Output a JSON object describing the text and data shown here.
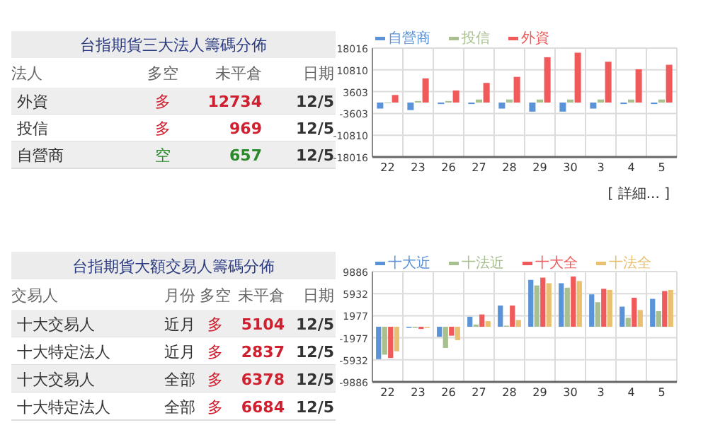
{
  "chart_data": [
    {
      "type": "other",
      "title": "台指期貨三大法人籌碼分佈",
      "categories": [
        "法人",
        "多空",
        "未平倉",
        "日期"
      ],
      "cell_labels": [
        [
          "外資",
          "多",
          "12734",
          "12/5"
        ],
        [
          "投信",
          "多",
          "969",
          "12/5"
        ],
        [
          "自營商",
          "空",
          "657",
          "12/5"
        ]
      ],
      "colors": [
        "#d02030",
        "#d02030",
        "#2a8a2a"
      ]
    },
    {
      "type": "bar",
      "categories": [
        "22",
        "23",
        "26",
        "27",
        "28",
        "29",
        "30",
        "3",
        "4",
        "5"
      ],
      "series": [
        {
          "name": "自營商",
          "color": "#5b93d8",
          "values": [
            -2000,
            -2500,
            -500,
            -500,
            -2000,
            -3000,
            -3000,
            -2000,
            -500,
            -500
          ]
        },
        {
          "name": "投信",
          "color": "#a8c090",
          "values": [
            0,
            500,
            500,
            1000,
            1000,
            1000,
            1000,
            1000,
            1000,
            1000
          ]
        },
        {
          "name": "外資",
          "color": "#f05a5a",
          "values": [
            2500,
            8000,
            4000,
            6500,
            8500,
            15000,
            16500,
            13500,
            11000,
            12500
          ]
        }
      ],
      "ylim": [
        -18016,
        18016
      ],
      "yticks": [
        -18016,
        -10810,
        -3603,
        3603,
        10810,
        18016
      ],
      "grid": true,
      "legend": "top left",
      "annotations": [
        "[ 詳細... ]"
      ]
    },
    {
      "type": "other",
      "title": "台指期貨大額交易人籌碼分佈",
      "categories": [
        "交易人",
        "月份",
        "多空",
        "未平倉",
        "日期"
      ],
      "cell_labels": [
        [
          "十大交易人",
          "近月",
          "多",
          "5104",
          "12/5"
        ],
        [
          "十大特定法人",
          "近月",
          "多",
          "2837",
          "12/5"
        ],
        [
          "十大交易人",
          "全部",
          "多",
          "6378",
          "12/5"
        ],
        [
          "十大特定法人",
          "全部",
          "多",
          "6684",
          "12/5"
        ]
      ],
      "colors": [
        "#d02030",
        "#d02030",
        "#d02030",
        "#d02030"
      ]
    },
    {
      "type": "bar",
      "categories": [
        "22",
        "23",
        "26",
        "27",
        "28",
        "29",
        "30",
        "3",
        "4",
        "5"
      ],
      "series": [
        {
          "name": "十大近",
          "color": "#5b93d8",
          "values": [
            -5800,
            -200,
            -1800,
            1800,
            3800,
            8400,
            7800,
            5800,
            3600,
            5000
          ]
        },
        {
          "name": "十法近",
          "color": "#a8c090",
          "values": [
            -5000,
            -200,
            -3800,
            400,
            200,
            7400,
            7000,
            4400,
            1600,
            2800
          ]
        },
        {
          "name": "十大全",
          "color": "#f05a5a",
          "values": [
            -5600,
            -400,
            -1600,
            2200,
            3800,
            8800,
            9000,
            6800,
            5200,
            6400
          ]
        },
        {
          "name": "十法全",
          "color": "#e8c070",
          "values": [
            -4400,
            -200,
            -2400,
            1000,
            1200,
            7800,
            8200,
            6600,
            3000,
            6600
          ]
        }
      ],
      "ylim": [
        -9886,
        9886
      ],
      "yticks": [
        -9886,
        -5932,
        -1977,
        1977,
        5932,
        9886
      ],
      "grid": true,
      "legend": "top left"
    }
  ]
}
